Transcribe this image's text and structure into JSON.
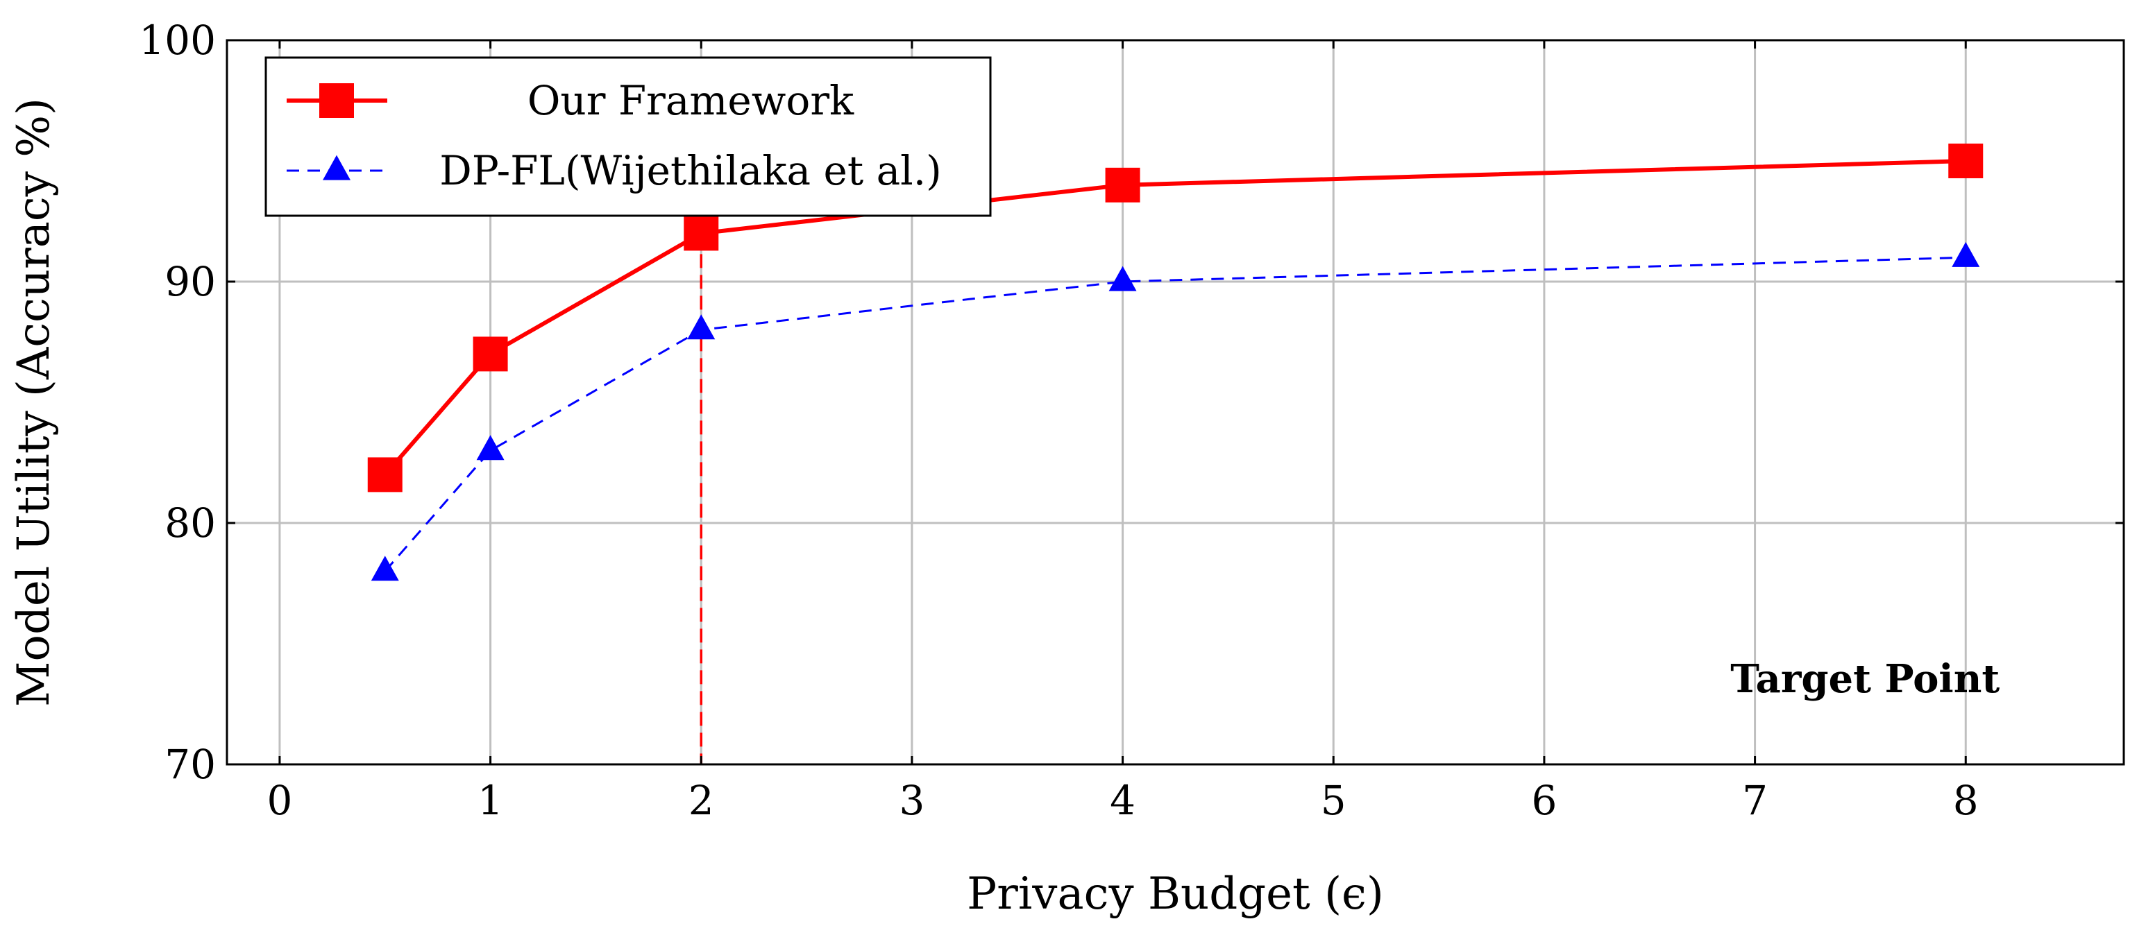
{
  "chart_data": {
    "type": "line",
    "xlabel": "Privacy Budget (ϵ)",
    "ylabel": "Model Utility (Accuracy %)",
    "xlim": [
      -0.25,
      8.75
    ],
    "ylim": [
      70,
      100
    ],
    "xticks": [
      0,
      1,
      2,
      3,
      4,
      5,
      6,
      7,
      8
    ],
    "yticks": [
      70,
      80,
      90,
      100
    ],
    "grid": true,
    "legend_position": "top-left",
    "series": [
      {
        "name": "Our Framework",
        "color": "#ff0000",
        "marker": "square",
        "line_style": "solid",
        "x": [
          0.5,
          1,
          2,
          4,
          8
        ],
        "y": [
          82,
          87,
          92,
          94,
          95
        ]
      },
      {
        "name": "DP-FL(Wijethilaka et al.)",
        "color": "#0000ff",
        "marker": "triangle",
        "line_style": "dashed",
        "x": [
          0.5,
          1,
          2,
          4,
          8
        ],
        "y": [
          78,
          83,
          88,
          90,
          91
        ]
      }
    ],
    "reference_line": {
      "x": 2,
      "color": "#ff0000",
      "style": "dashed"
    },
    "annotation": {
      "text": "Target Point",
      "x": 8.0,
      "y": 73.5
    }
  }
}
